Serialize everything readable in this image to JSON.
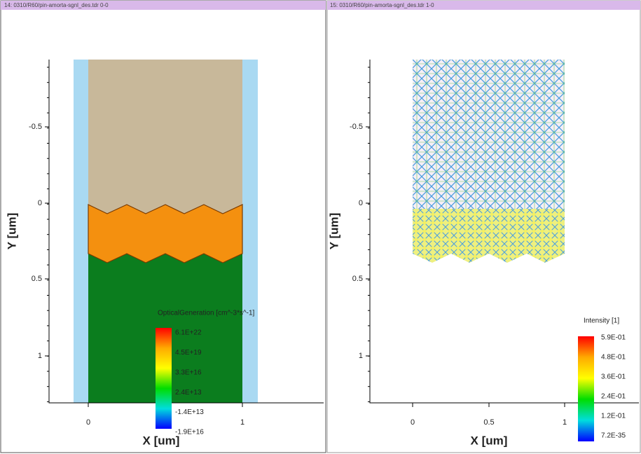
{
  "panels": [
    {
      "title": "14: 0310/R60/pin-amorta-sgnl_des.tdr 0-0",
      "y_label": "Y [um]",
      "x_label": "X [um]",
      "y_ticks": [
        "-0.5",
        "0",
        "0.5",
        "1"
      ],
      "x_ticks": [
        "0",
        "1"
      ],
      "legend": {
        "title": "OpticalGeneration [cm^-3*s^-1]",
        "labels": [
          "6.1E+22",
          "4.5E+19",
          "3.3E+16",
          "2.4E+13",
          "-1.4E+13",
          "-1.9E+16"
        ]
      }
    },
    {
      "title": "15: 0310/R60/pin-amorta-sgnl_des.tdr 1-0",
      "y_label": "Y [um]",
      "x_label": "X [um]",
      "y_ticks": [
        "-0.5",
        "0",
        "0.5",
        "1"
      ],
      "x_ticks": [
        "0",
        "0.5",
        "1"
      ],
      "legend": {
        "title": "Intensity [1]",
        "labels": [
          "5.9E-01",
          "4.8E-01",
          "3.6E-01",
          "2.4E-01",
          "1.2E-01",
          "7.2E-35"
        ]
      }
    }
  ]
}
